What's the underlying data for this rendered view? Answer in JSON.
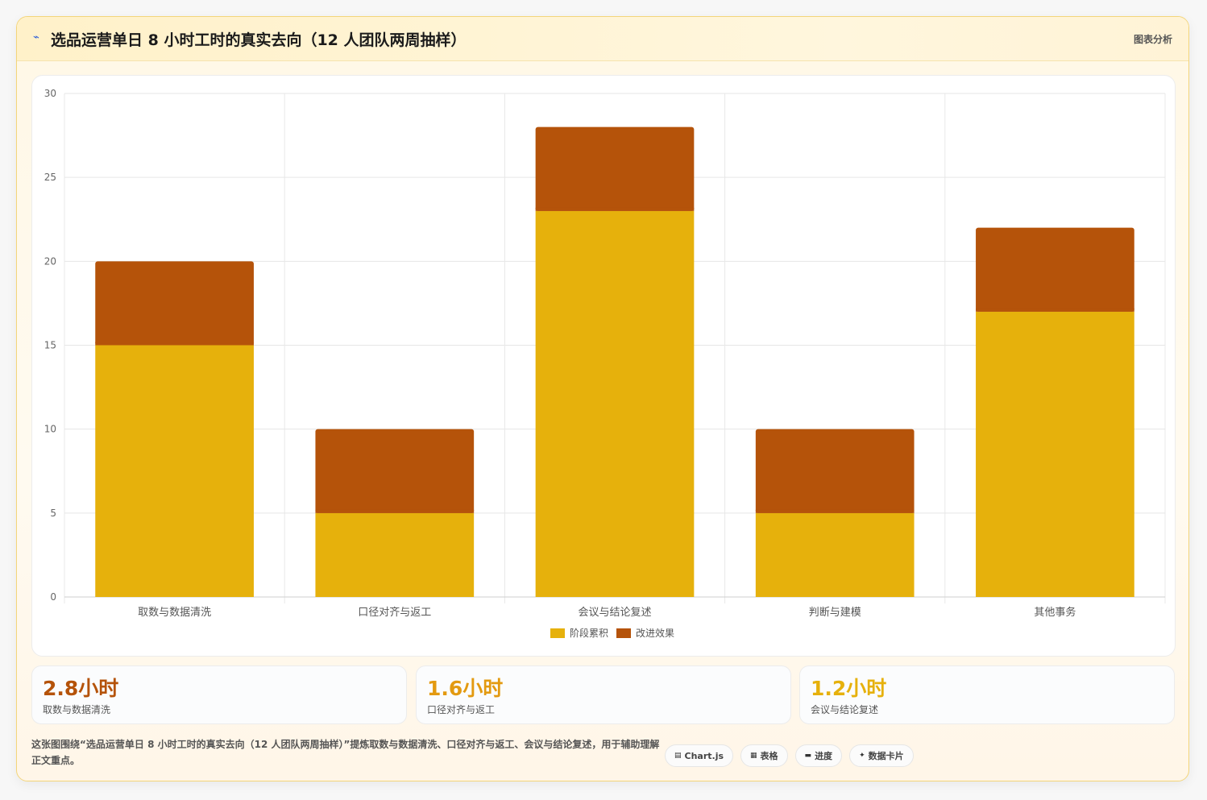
{
  "header": {
    "icon": "⌁",
    "title": "选品运营单日 8 小时工时的真实去向（12 人团队两周抽样）",
    "tag": "图表分析"
  },
  "chart_data": {
    "type": "bar",
    "stacked": true,
    "categories": [
      "取数与数据清洗",
      "口径对齐与返工",
      "会议与结论复述",
      "判断与建模",
      "其他事务"
    ],
    "series": [
      {
        "name": "阶段累积",
        "values": [
          15,
          5,
          23,
          5,
          17
        ],
        "color": "#e6b10c"
      },
      {
        "name": "改进效果",
        "values": [
          5,
          5,
          5,
          5,
          5
        ],
        "color": "#b5530a"
      }
    ],
    "ylim": [
      0,
      30
    ],
    "yticks": [
      0,
      5,
      10,
      15,
      20,
      25,
      30
    ],
    "grid": true,
    "legend": "bottom"
  },
  "stats": [
    {
      "value": "2.8小时",
      "label": "取数与数据清洗",
      "color": "#b5530a"
    },
    {
      "value": "1.6小时",
      "label": "口径对齐与返工",
      "color": "#e39a10"
    },
    {
      "value": "1.2小时",
      "label": "会议与结论复述",
      "color": "#e6b10c"
    }
  ],
  "footer": {
    "text": "这张图围绕“选品运营单日 8 小时工时的真实去向（12 人团队两周抽样）”提炼取数与数据清洗、口径对齐与返工、会议与结论复述，用于辅助理解正文重点。"
  },
  "chips": [
    {
      "icon": "▤",
      "label": "Chart.js",
      "icon_name": "chart-icon"
    },
    {
      "icon": "▦",
      "label": "表格",
      "icon_name": "table-icon"
    },
    {
      "icon": "▬",
      "label": "进度",
      "icon_name": "progress-icon"
    },
    {
      "icon": "✦",
      "label": "数据卡片",
      "icon_name": "sparkle-icon"
    }
  ]
}
